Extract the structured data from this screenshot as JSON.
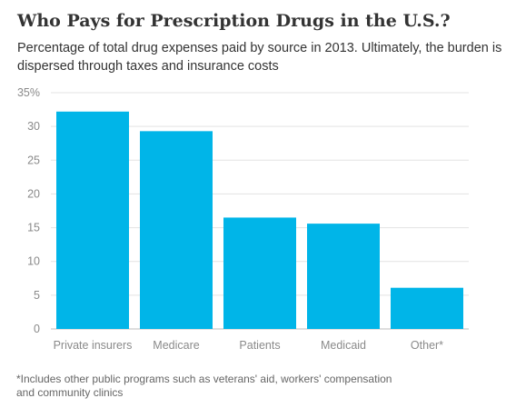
{
  "header": {
    "title": "Who Pays for Prescription Drugs in the U.S.?",
    "subtitle": "Percentage of total drug expenses paid by source in 2013. Ultimately, the burden is dispersed through taxes and insurance costs"
  },
  "footnote": "*Includes other public programs such as veterans' aid, workers' compensation and community clinics",
  "chart_data": {
    "type": "bar",
    "title": "Who Pays for Prescription Drugs in the U.S.?",
    "subtitle": "Percentage of total drug expenses paid by source in 2013. Ultimately, the burden is dispersed through taxes and insurance costs",
    "categories": [
      "Private insurers",
      "Medicare",
      "Patients",
      "Medicaid",
      "Other*"
    ],
    "values": [
      32.2,
      29.3,
      16.5,
      15.6,
      6.1
    ],
    "ylim": [
      0,
      35
    ],
    "yticks": [
      0,
      5,
      10,
      15,
      20,
      25,
      30,
      35
    ],
    "ytick_labels": [
      "0",
      "5",
      "10",
      "15",
      "20",
      "25",
      "30",
      "35%"
    ],
    "xlabel": "",
    "ylabel": "",
    "grid": true,
    "colors": {
      "bar": "#00b5e8",
      "grid": "#e3e3e3",
      "axis": "#bdbdbd"
    }
  }
}
